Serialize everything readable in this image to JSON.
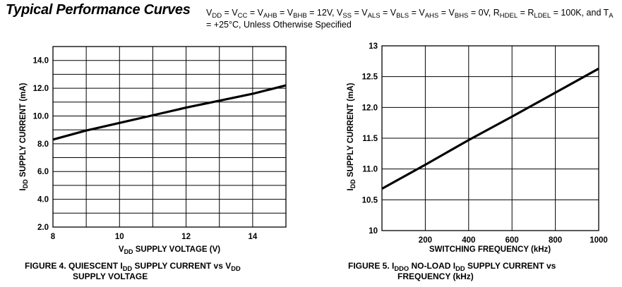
{
  "header": {
    "title": "Typical Performance Curves",
    "conditions": [
      [
        "V",
        0
      ],
      [
        "DD",
        1
      ],
      [
        " = V",
        0
      ],
      [
        "CC",
        1
      ],
      [
        " = V",
        0
      ],
      [
        "AHB",
        1
      ],
      [
        " = V",
        0
      ],
      [
        "BHB",
        1
      ],
      [
        " = 12V, V",
        0
      ],
      [
        "SS",
        1
      ],
      [
        " = V",
        0
      ],
      [
        "ALS",
        1
      ],
      [
        " = V",
        0
      ],
      [
        "BLS",
        1
      ],
      [
        " = V",
        0
      ],
      [
        "AHS",
        1
      ],
      [
        " = V",
        0
      ],
      [
        "BHS",
        1
      ],
      [
        " = 0V, R",
        0
      ],
      [
        "HDEL",
        1
      ],
      [
        " = R",
        0
      ],
      [
        "LDEL",
        1
      ],
      [
        " = 100K, and T",
        0
      ],
      [
        "A",
        1
      ],
      [
        " = +25°C, Unless Otherwise Specified",
        0
      ]
    ]
  },
  "chart_data": [
    {
      "type": "line",
      "caption_line1": [
        [
          "FIGURE 4.  QUIESCENT I",
          0
        ],
        [
          "DD",
          1
        ],
        [
          " SUPPLY CURRENT vs V",
          0
        ],
        [
          "DD",
          1
        ]
      ],
      "caption_line2": [
        [
          "SUPPLY VOLTAGE",
          0
        ]
      ],
      "xlabel": [
        [
          "V",
          0
        ],
        [
          "DD",
          1
        ],
        [
          " SUPPLY VOLTAGE (V)",
          0
        ]
      ],
      "ylabel": [
        [
          "I",
          0
        ],
        [
          "DD",
          1
        ],
        [
          " SUPPLY CURRENT (mA)",
          0
        ]
      ],
      "xlim": [
        8,
        15
      ],
      "ylim": [
        2,
        15
      ],
      "x_ticks": [
        8,
        10,
        12,
        14
      ],
      "x_tick_labels": [
        "8",
        "10",
        "12",
        "14"
      ],
      "y_ticks": [
        2,
        4,
        6,
        8,
        10,
        12,
        14
      ],
      "y_tick_labels": [
        "2.0",
        "4.0",
        "6.0",
        "8.0",
        "10.0",
        "12.0",
        "14.0"
      ],
      "x_grid_step": 1,
      "y_grid_step": 1,
      "grid": true,
      "series": [
        {
          "x": [
            8,
            9,
            10,
            11,
            12,
            13,
            14,
            15
          ],
          "y": [
            8.3,
            8.95,
            9.5,
            10.05,
            10.6,
            11.1,
            11.6,
            12.2
          ]
        }
      ]
    },
    {
      "type": "line",
      "caption_line1": [
        [
          "FIGURE 5.  I",
          0
        ],
        [
          "DDO",
          1
        ],
        [
          " NO-LOAD I",
          0
        ],
        [
          "DD",
          1
        ],
        [
          " SUPPLY CURRENT vs",
          0
        ]
      ],
      "caption_line2": [
        [
          "FREQUENCY (kHz)",
          0
        ]
      ],
      "xlabel": [
        [
          "SWITCHING FREQUENCY (kHz)",
          0
        ]
      ],
      "ylabel": [
        [
          "I",
          0
        ],
        [
          "DD",
          1
        ],
        [
          " SUPPLY CURRENT (mA)",
          0
        ]
      ],
      "xlim": [
        0,
        1000
      ],
      "ylim": [
        10,
        13
      ],
      "x_ticks": [
        200,
        400,
        600,
        800,
        1000
      ],
      "x_tick_labels": [
        "200",
        "400",
        "600",
        "800",
        "1000"
      ],
      "y_ticks": [
        10,
        10.5,
        11,
        11.5,
        12,
        12.5,
        13
      ],
      "y_tick_labels": [
        "10",
        "10.5",
        "11.0",
        "11.5",
        "12.0",
        "12.5",
        "13"
      ],
      "x_grid_step": 200,
      "y_grid_step": 0.5,
      "grid": true,
      "series": [
        {
          "x": [
            0,
            200,
            400,
            600,
            800,
            1000
          ],
          "y": [
            10.68,
            11.07,
            11.47,
            11.85,
            12.24,
            12.63
          ]
        }
      ]
    }
  ]
}
